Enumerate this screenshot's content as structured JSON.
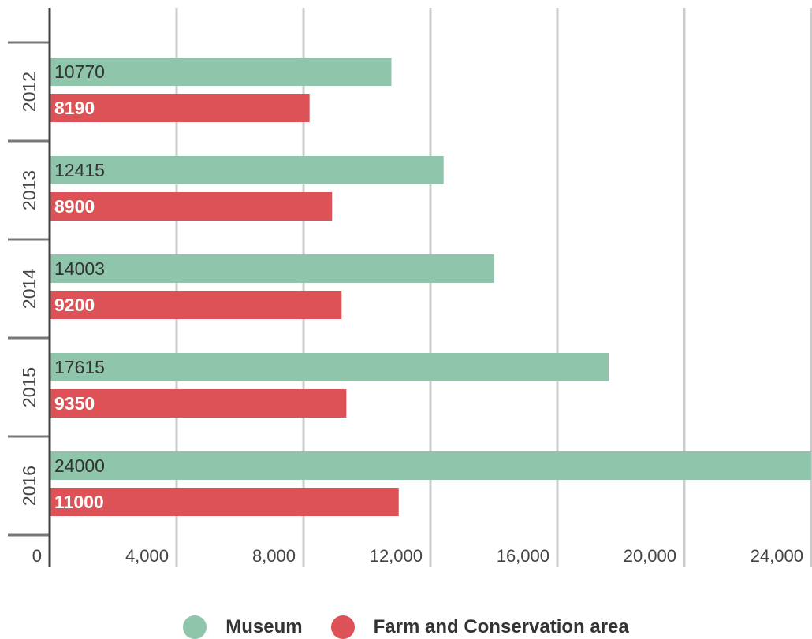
{
  "chart_data": {
    "type": "bar",
    "orientation": "horizontal",
    "title": "",
    "xlabel": "",
    "ylabel": "",
    "categories": [
      "2012",
      "2013",
      "2014",
      "2015",
      "2016"
    ],
    "series": [
      {
        "name": "Museum",
        "color": "#8fc5aa",
        "values": [
          10770,
          12415,
          14003,
          17615,
          24000
        ]
      },
      {
        "name": "Farm and Conservation area",
        "color": "#dd5256",
        "values": [
          8190,
          8900,
          9200,
          9350,
          11000
        ]
      }
    ],
    "xlim": [
      0,
      24000
    ],
    "x_ticks": [
      "0",
      "4,000",
      "8,000",
      "12,000",
      "16,000",
      "20,000",
      "24,000"
    ],
    "data_labels": true,
    "grid": true,
    "legend": "bottom-center"
  }
}
